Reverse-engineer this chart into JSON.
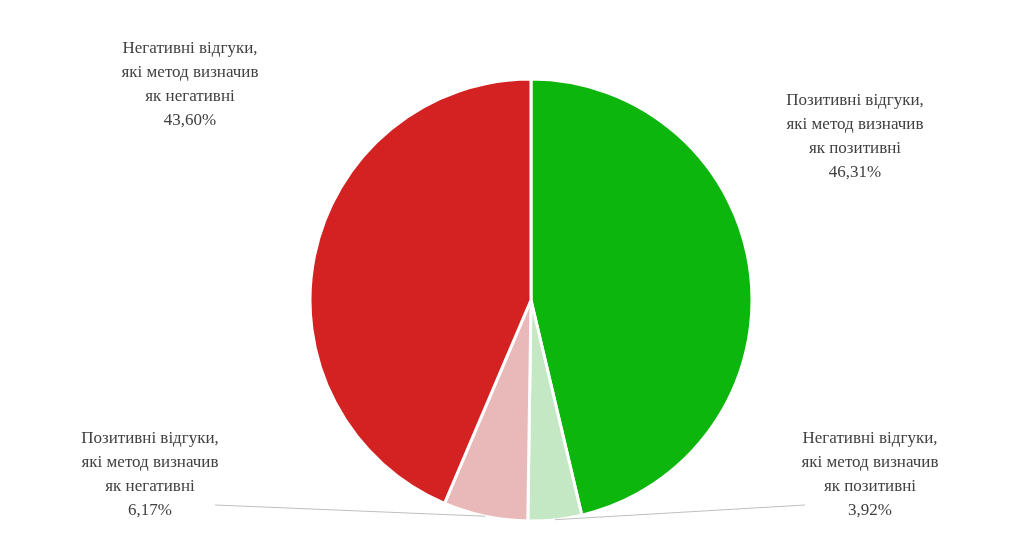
{
  "chart_data": {
    "type": "pie",
    "categories": [
      "Позитивні відгуки, які метод визначив як позитивні",
      "Негативні відгуки, які метод визначив як позитивні",
      "Позитивні відгуки, які метод визначив як негативні",
      "Негативні відгуки, які метод визначив як негативні"
    ],
    "values": [
      46.31,
      3.92,
      6.17,
      43.6
    ],
    "colors": [
      "#0db60d",
      "#c4e8c4",
      "#e9b9b9",
      "#d42222"
    ],
    "value_labels": [
      "46,31%",
      "3,92%",
      "6,17%",
      "43,60%"
    ],
    "legend": false
  }
}
